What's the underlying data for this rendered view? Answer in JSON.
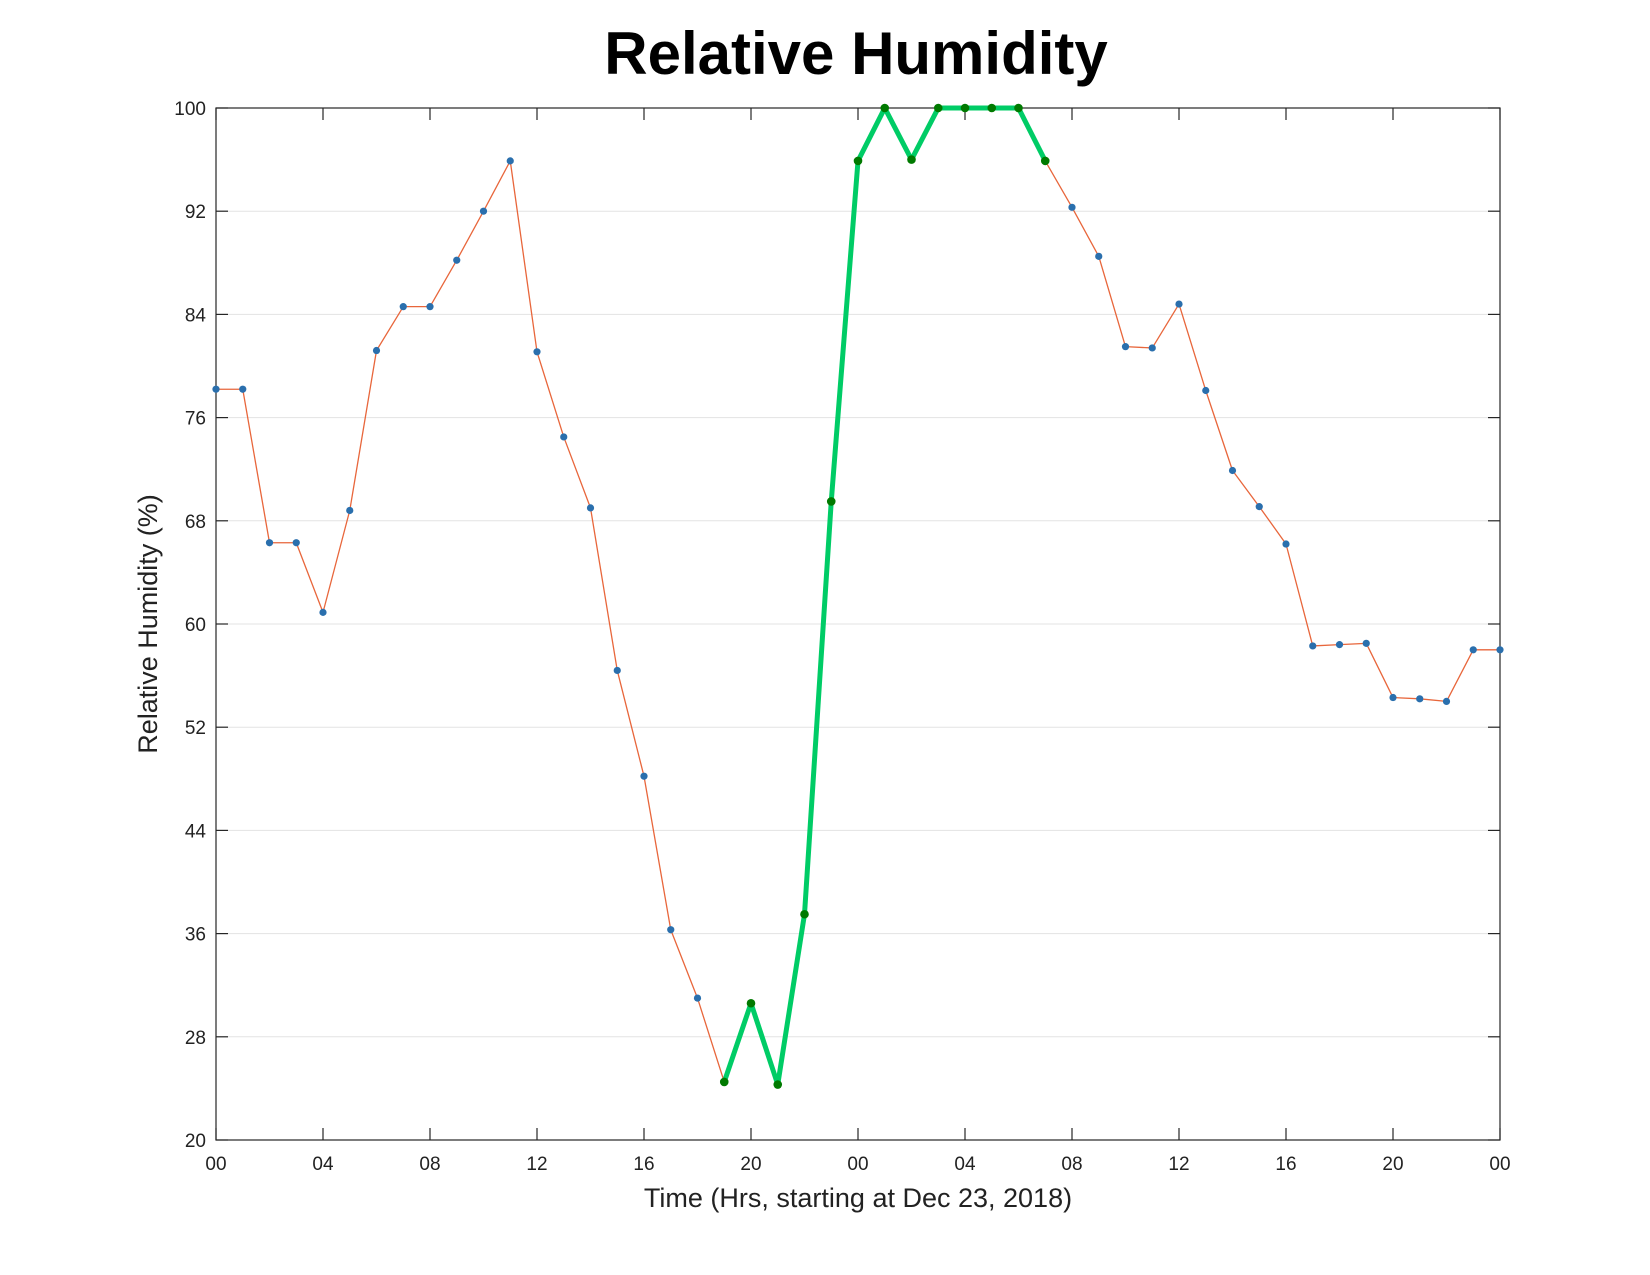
{
  "chart_data": {
    "type": "line",
    "title": "Relative Humidity",
    "xlabel": "Time (Hrs, starting at Dec 23, 2018)",
    "ylabel": "Relative Humidity (%)",
    "xlim": [
      0,
      48
    ],
    "ylim": [
      20,
      100
    ],
    "x_ticks": [
      0,
      4,
      8,
      12,
      16,
      20,
      24,
      28,
      32,
      36,
      40,
      44,
      48
    ],
    "x_tick_labels": [
      "00",
      "04",
      "08",
      "12",
      "16",
      "20",
      "00",
      "04",
      "08",
      "12",
      "16",
      "20",
      "00"
    ],
    "y_ticks": [
      20,
      28,
      36,
      44,
      52,
      60,
      68,
      76,
      84,
      92,
      100
    ],
    "y_tick_labels": [
      "20",
      "28",
      "36",
      "44",
      "52",
      "60",
      "68",
      "76",
      "84",
      "92",
      "100"
    ],
    "grid": true,
    "series": [
      {
        "color": "#e8663b",
        "marker_color": "#2a6fad",
        "x": [
          0,
          1,
          2,
          3,
          4,
          5,
          6,
          7,
          8,
          9,
          10,
          11,
          12,
          13,
          14,
          15,
          16,
          17,
          18,
          19,
          20,
          21,
          22,
          23,
          24,
          25,
          26,
          27,
          28,
          29,
          30,
          31,
          32,
          33,
          34,
          35,
          36,
          37,
          38,
          39,
          40,
          41,
          42,
          43,
          44,
          45,
          46,
          47,
          48
        ],
        "y": [
          78.2,
          78.2,
          66.3,
          66.3,
          60.9,
          68.8,
          81.2,
          84.6,
          84.6,
          88.2,
          92.0,
          95.9,
          81.1,
          74.5,
          69.0,
          56.4,
          48.2,
          36.3,
          31.0,
          24.5,
          30.6,
          24.3,
          37.5,
          69.5,
          95.9,
          100,
          96.0,
          100,
          100,
          100,
          100,
          95.9,
          92.3,
          88.5,
          81.5,
          81.4,
          84.8,
          78.1,
          71.9,
          69.1,
          66.2,
          58.3,
          58.4,
          58.5,
          54.3,
          54.2,
          54.0,
          58.0,
          58.0
        ]
      },
      {
        "color": "#00cc66",
        "marker_color": "#007a00",
        "x": [
          19,
          20,
          21,
          22,
          23,
          24,
          25,
          26,
          27,
          28,
          29,
          30,
          31
        ],
        "y": [
          24.5,
          30.6,
          24.3,
          37.5,
          69.5,
          95.9,
          100,
          96.0,
          100,
          100,
          100,
          100,
          95.9
        ]
      }
    ]
  }
}
